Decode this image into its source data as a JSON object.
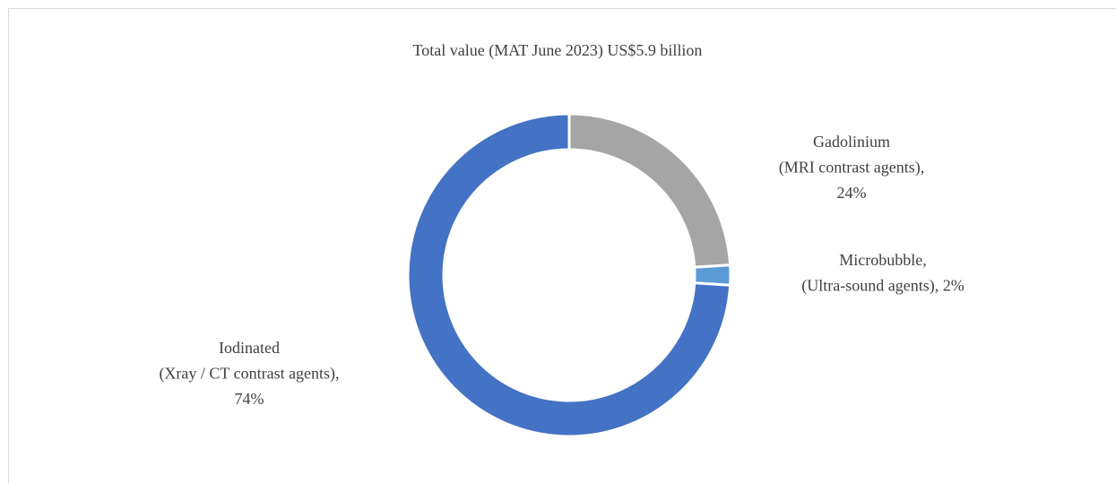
{
  "chart_data": {
    "type": "donut",
    "title": "Total value (MAT June 2023) US$5.9 billion",
    "values": [
      24,
      2,
      74
    ],
    "value_labels": [
      [
        "Gadolinium",
        "(MRI contrast agents),",
        "24%"
      ],
      [
        "Microbubble,",
        "(Ultra-sound agents), 2%"
      ],
      [
        "Iodinated",
        "(Xray / CT contrast agents),",
        "74%"
      ]
    ],
    "colors": [
      "#a5a5a5",
      "#5b9bd5",
      "#4472c4"
    ]
  }
}
